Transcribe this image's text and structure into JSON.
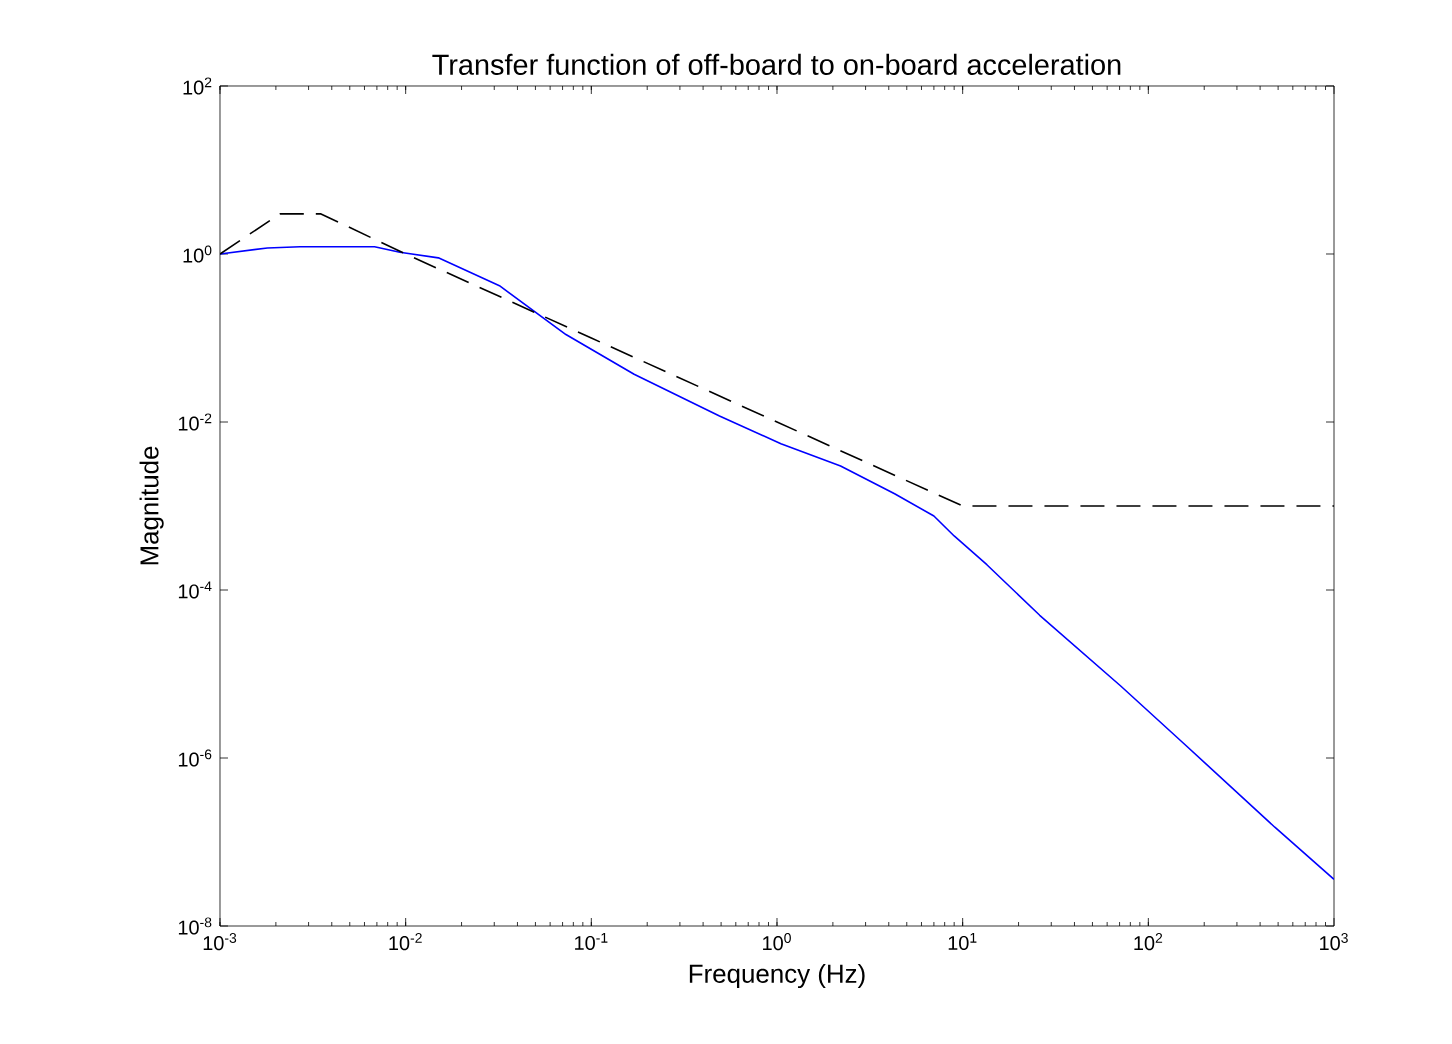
{
  "chart_data": {
    "type": "line",
    "title": "Transfer function of off-board to on-board acceleration",
    "xlabel": "Frequency (Hz)",
    "ylabel": "Magnitude",
    "log": "xy",
    "xlim": [
      0.001,
      1000
    ],
    "ylim": [
      1e-08,
      100
    ],
    "xticks": [
      {
        "value": 0.001,
        "label": "10$^{-3}$"
      },
      {
        "value": 0.01,
        "label": "10$^{-2}$"
      },
      {
        "value": 0.1,
        "label": "10$^{-1}$"
      },
      {
        "value": 1,
        "label": "10$^{0}$"
      },
      {
        "value": 10,
        "label": "10$^{1}$"
      },
      {
        "value": 100,
        "label": "10$^{2}$"
      },
      {
        "value": 1000,
        "label": "10$^{3}$"
      }
    ],
    "yticks": [
      {
        "value": 1e-08,
        "label": "10$^{-8}$"
      },
      {
        "value": 1e-06,
        "label": "10$^{-6}$"
      },
      {
        "value": 0.0001,
        "label": "10$^{-4}$"
      },
      {
        "value": 0.01,
        "label": "10$^{-2}$"
      },
      {
        "value": 1,
        "label": "10$^{0}$"
      },
      {
        "value": 100,
        "label": "10$^{2}$"
      }
    ],
    "series": [
      {
        "color": "#0000ff",
        "line_style": "solid",
        "x": [
          0.001,
          0.0018,
          0.0027,
          0.0068,
          0.0093,
          0.015,
          0.032,
          0.073,
          0.17,
          0.49,
          1.05,
          2.2,
          4.3,
          7,
          9,
          13.5,
          26,
          71,
          160,
          480,
          1000
        ],
        "values": [
          1.0,
          1.18,
          1.22,
          1.22,
          1.05,
          0.9,
          0.42,
          0.11,
          0.037,
          0.0118,
          0.0055,
          0.003,
          0.0014,
          0.00076,
          0.00044,
          0.0002,
          5e-05,
          7.2e-06,
          1.4e-06,
          1.5e-07,
          3.6e-08
        ]
      },
      {
        "color": "#000000",
        "line_style": "dashed",
        "x": [
          0.001,
          0.0021,
          0.0035,
          0.01,
          0.1,
          1,
          10,
          1000
        ],
        "values": [
          1.0,
          3.0,
          3.0,
          1.0,
          0.1,
          0.01,
          0.001,
          0.001
        ]
      }
    ]
  }
}
